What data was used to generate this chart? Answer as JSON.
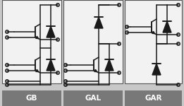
{
  "labels": [
    "GB",
    "GAL",
    "GAR"
  ],
  "bg_color": "#c8c8c8",
  "panel_color": "#f2f2f2",
  "label_bg": "#787878",
  "label_fg": "#ffffff",
  "line_color": "#1a1a1a",
  "fig_w": 2.61,
  "fig_h": 1.5,
  "dpi": 100,
  "lw": 1.1,
  "border_color": "#555555"
}
